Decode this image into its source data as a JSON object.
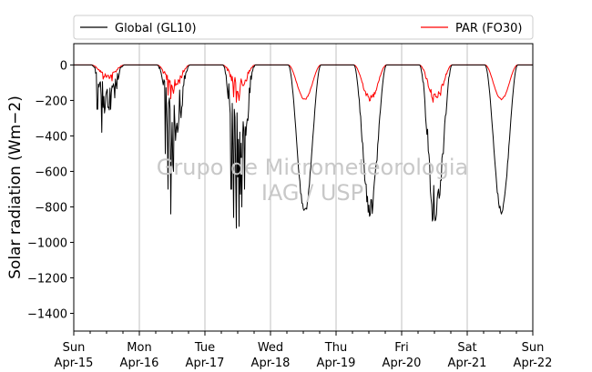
{
  "chart_data": {
    "type": "line",
    "ylabel": "Solar radiation (Wm−2)",
    "ylim": [
      -1500,
      120
    ],
    "yticks": [
      0,
      -200,
      -400,
      -600,
      -800,
      -1000,
      -1200,
      -1400
    ],
    "xlim": [
      0,
      7
    ],
    "xticks": [
      {
        "x": 0,
        "day": "Sun",
        "date": "Apr-15"
      },
      {
        "x": 1,
        "day": "Mon",
        "date": "Apr-16"
      },
      {
        "x": 2,
        "day": "Tue",
        "date": "Apr-17"
      },
      {
        "x": 3,
        "day": "Wed",
        "date": "Apr-18"
      },
      {
        "x": 4,
        "day": "Thu",
        "date": "Apr-19"
      },
      {
        "x": 5,
        "day": "Fri",
        "date": "Apr-20"
      },
      {
        "x": 6,
        "day": "Sat",
        "date": "Apr-21"
      },
      {
        "x": 7,
        "day": "Sun",
        "date": "Apr-22"
      }
    ],
    "minor_tick_step": 0.25,
    "grid": "vertical-major",
    "legend_placement": "top-outside",
    "watermark": [
      "Grupo de Micrometeorologia",
      "IAG / USP"
    ],
    "series": [
      {
        "name": "Global (GL10)",
        "color": "#000000",
        "daily": [
          {
            "day": 0,
            "rise": 0.27,
            "set": 0.77,
            "peak": -260,
            "noise": 0.9,
            "spikes": [
              [
                0.43,
                -380
              ],
              [
                0.56,
                -250
              ],
              [
                0.52,
                -240
              ],
              [
                0.36,
                -250
              ]
            ]
          },
          {
            "day": 1,
            "rise": 0.27,
            "set": 0.77,
            "peak": -450,
            "noise": 0.95,
            "spikes": [
              [
                0.48,
                -840
              ],
              [
                0.44,
                -700
              ],
              [
                0.52,
                -600
              ],
              [
                0.4,
                -500
              ],
              [
                0.58,
                -380
              ]
            ]
          },
          {
            "day": 2,
            "rise": 0.27,
            "set": 0.77,
            "peak": -600,
            "noise": 0.9,
            "spikes": [
              [
                0.48,
                -920
              ],
              [
                0.52,
                -910
              ],
              [
                0.44,
                -860
              ],
              [
                0.56,
                -800
              ],
              [
                0.6,
                -700
              ],
              [
                0.4,
                -700
              ],
              [
                0.67,
                -250
              ]
            ]
          },
          {
            "day": 3,
            "rise": 0.27,
            "set": 0.77,
            "peak": -835,
            "noise": 0.05,
            "spikes": []
          },
          {
            "day": 4,
            "rise": 0.27,
            "set": 0.77,
            "peak": -835,
            "noise": 0.15,
            "spikes": [
              [
                0.5,
                -790
              ],
              [
                0.54,
                -760
              ]
            ]
          },
          {
            "day": 5,
            "rise": 0.27,
            "set": 0.77,
            "peak": -850,
            "noise": 0.35,
            "spikes": [
              [
                0.47,
                -880
              ],
              [
                0.52,
                -870
              ],
              [
                0.56,
                -700
              ],
              [
                0.6,
                -650
              ],
              [
                0.63,
                -500
              ]
            ]
          },
          {
            "day": 6,
            "rise": 0.27,
            "set": 0.77,
            "peak": -830,
            "noise": 0.05,
            "spikes": []
          }
        ]
      },
      {
        "name": "PAR (FO30)",
        "color": "#ff0000",
        "daily": [
          {
            "day": 0,
            "rise": 0.27,
            "set": 0.77,
            "peak": -70,
            "noise": 0.5,
            "spikes": [
              [
                0.45,
                -80
              ],
              [
                0.58,
                -90
              ]
            ]
          },
          {
            "day": 1,
            "rise": 0.27,
            "set": 0.77,
            "peak": -130,
            "noise": 0.6,
            "spikes": [
              [
                0.48,
                -190
              ],
              [
                0.44,
                -170
              ],
              [
                0.52,
                -160
              ]
            ]
          },
          {
            "day": 2,
            "rise": 0.27,
            "set": 0.77,
            "peak": -140,
            "noise": 0.7,
            "spikes": [
              [
                0.48,
                -210
              ],
              [
                0.52,
                -200
              ],
              [
                0.44,
                -180
              ]
            ]
          },
          {
            "day": 3,
            "rise": 0.27,
            "set": 0.77,
            "peak": -195,
            "noise": 0.05,
            "spikes": []
          },
          {
            "day": 4,
            "rise": 0.27,
            "set": 0.77,
            "peak": -195,
            "noise": 0.2,
            "spikes": [
              [
                0.52,
                -200
              ]
            ]
          },
          {
            "day": 5,
            "rise": 0.27,
            "set": 0.77,
            "peak": -200,
            "noise": 0.35,
            "spikes": [
              [
                0.48,
                -210
              ],
              [
                0.52,
                -180
              ],
              [
                0.58,
                -160
              ]
            ]
          },
          {
            "day": 6,
            "rise": 0.27,
            "set": 0.77,
            "peak": -195,
            "noise": 0.05,
            "spikes": []
          }
        ]
      }
    ]
  }
}
